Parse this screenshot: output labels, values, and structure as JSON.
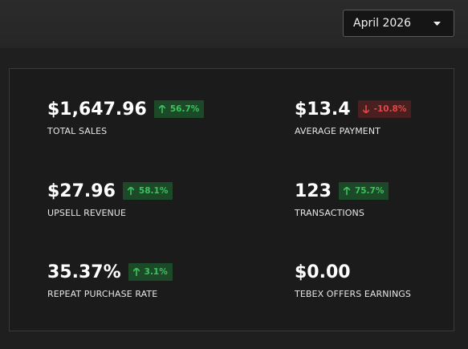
{
  "header": {
    "month_select": "April 2026"
  },
  "metrics": [
    {
      "value": "$1,647.96",
      "label": "TOTAL SALES",
      "change": "56.7%",
      "trend": "up"
    },
    {
      "value": "$13.4",
      "label": "AVERAGE PAYMENT",
      "change": "-10.8%",
      "trend": "down"
    },
    {
      "value": "$27.96",
      "label": "UPSELL REVENUE",
      "change": "58.1%",
      "trend": "up"
    },
    {
      "value": "123",
      "label": "TRANSACTIONS",
      "change": "75.7%",
      "trend": "up"
    },
    {
      "value": "35.37%",
      "label": "REPEAT PURCHASE RATE",
      "change": "3.1%",
      "trend": "up"
    },
    {
      "value": "$0.00",
      "label": "TEBEX OFFERS EARNINGS"
    }
  ]
}
